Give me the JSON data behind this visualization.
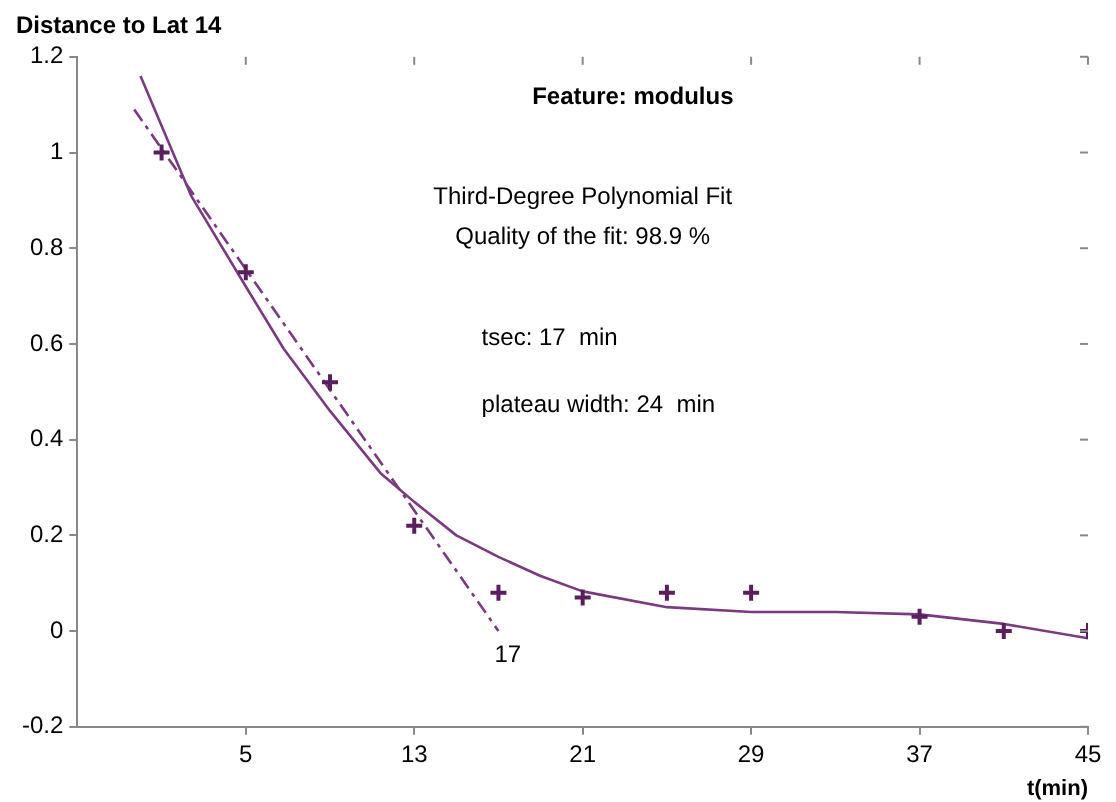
{
  "chart_data": {
    "type": "scatter",
    "title": "Distance to Lat 14",
    "xlabel": "t(min)",
    "xlim": [
      -3,
      45
    ],
    "xticks": [
      5,
      13,
      21,
      29,
      37,
      45
    ],
    "ylim": [
      -0.2,
      1.2
    ],
    "yticks": [
      -0.2,
      0,
      0.2,
      0.4,
      0.6,
      0.8,
      1,
      1.2
    ],
    "grid": false,
    "legend": false,
    "marker": "cross",
    "series": [
      {
        "color": "#5a1e5e",
        "x": [
          1,
          5,
          9,
          13,
          17,
          21,
          25,
          29,
          37,
          41,
          45
        ],
        "values": [
          1.0,
          0.75,
          0.52,
          0.22,
          0.08,
          0.07,
          0.08,
          0.08,
          0.03,
          0.0,
          0.0
        ]
      },
      {
        "type": "line",
        "color": "#7a3a80",
        "line_style": "solid",
        "marker": "none",
        "x": [
          0,
          2.4,
          5,
          6.8,
          9,
          11.4,
          13,
          15,
          17,
          19,
          21,
          25,
          29,
          33,
          37,
          41,
          45
        ],
        "values": [
          1.16,
          0.91,
          0.72,
          0.59,
          0.46,
          0.33,
          0.27,
          0.2,
          0.155,
          0.115,
          0.083,
          0.05,
          0.04,
          0.04,
          0.035,
          0.015,
          -0.015
        ]
      },
      {
        "type": "line",
        "color": "#7a3a80",
        "line_style": "dashed",
        "marker": "none",
        "x": [
          -0.3,
          17
        ],
        "values": [
          1.09,
          0
        ]
      }
    ],
    "annotations": [
      "Feature: modulus",
      "Third-Degree Polynomial Fit",
      "Quality of the fit: 98.9 %",
      "tsec: 17  min",
      "plateau width: 24  min",
      {
        "text": "17",
        "x": 17,
        "y": 0
      }
    ]
  }
}
